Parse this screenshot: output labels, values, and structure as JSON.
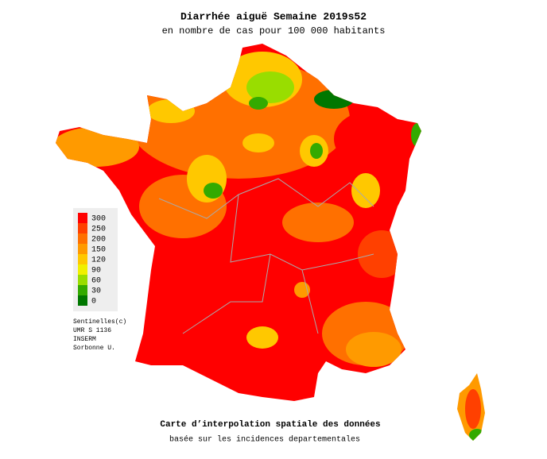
{
  "header": {
    "title": "Diarrhée aiguë Semaine 2019s52",
    "subtitle": "en nombre de cas pour 100 000 habitants"
  },
  "legend": {
    "items": [
      {
        "label": "300",
        "color": "#ff0000"
      },
      {
        "label": "250",
        "color": "#ff4000"
      },
      {
        "label": "200",
        "color": "#ff7000"
      },
      {
        "label": "150",
        "color": "#ff9a00"
      },
      {
        "label": "120",
        "color": "#ffc800"
      },
      {
        "label": "90",
        "color": "#f0f000"
      },
      {
        "label": "60",
        "color": "#99dd00"
      },
      {
        "label": "30",
        "color": "#33aa00"
      },
      {
        "label": "0",
        "color": "#007700"
      }
    ]
  },
  "credits": [
    "Sentinelles(c)",
    "UMR S 1136",
    "INSERM",
    "Sorbonne U."
  ],
  "footer": {
    "title": "Carte d’interpolation spatiale des données",
    "subtitle": "basée sur les incidences departementales"
  }
}
